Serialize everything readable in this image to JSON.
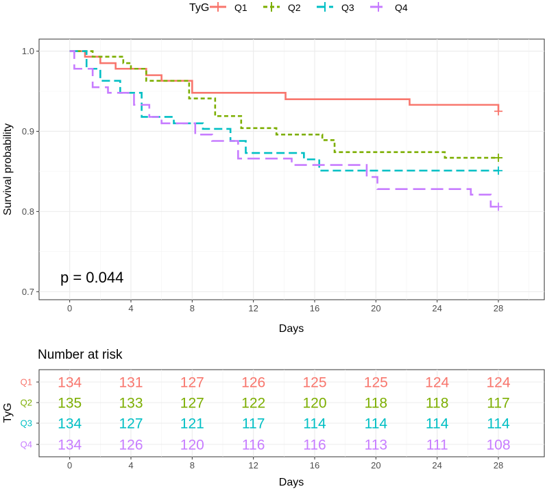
{
  "legend": {
    "title": "TyG",
    "items": [
      {
        "label": "Q1",
        "color": "#F8766D",
        "dash": "solid"
      },
      {
        "label": "Q2",
        "color": "#7CAE00",
        "dash": "dotted"
      },
      {
        "label": "Q3",
        "color": "#00BFC4",
        "dash": "dashed"
      },
      {
        "label": "Q4",
        "color": "#C77CFF",
        "dash": "longdash"
      }
    ]
  },
  "chart_data": [
    {
      "type": "line",
      "subtype": "kaplan-meier step",
      "xlabel": "Days",
      "ylabel": "Survival probability",
      "xlim": [
        -2,
        31
      ],
      "ylim": [
        0.69,
        1.015
      ],
      "xticks": [
        0,
        4,
        8,
        12,
        16,
        20,
        24,
        28
      ],
      "yticks": [
        0.7,
        0.8,
        0.9,
        1.0
      ],
      "ytick_labels": [
        "0.7",
        "0.8",
        "0.9",
        "1.0"
      ],
      "grid": true,
      "legend_position": "top",
      "annotation": "p = 0.044",
      "series": [
        {
          "name": "Q1",
          "x": [
            0,
            1,
            2,
            3,
            5,
            6,
            8,
            14.1,
            22.2,
            28
          ],
          "y": [
            1.0,
            0.993,
            0.985,
            0.978,
            0.97,
            0.963,
            0.948,
            0.94,
            0.933,
            0.925
          ]
        },
        {
          "name": "Q2",
          "x": [
            0,
            1.5,
            3.5,
            4,
            5,
            7.8,
            9.5,
            11.2,
            13.5,
            16.5,
            17.3,
            24.5,
            28
          ],
          "y": [
            1.0,
            0.993,
            0.985,
            0.978,
            0.963,
            0.941,
            0.919,
            0.904,
            0.896,
            0.889,
            0.874,
            0.867,
            0.867
          ]
        },
        {
          "name": "Q3",
          "x": [
            0,
            1.1,
            2,
            3.3,
            4.7,
            6.8,
            8.7,
            10.5,
            11.5,
            15.3,
            16.3,
            28
          ],
          "y": [
            1.0,
            0.978,
            0.963,
            0.948,
            0.918,
            0.91,
            0.903,
            0.888,
            0.873,
            0.865,
            0.851,
            0.851
          ]
        },
        {
          "name": "Q4",
          "x": [
            0,
            0.3,
            1.5,
            2.5,
            4.2,
            5.2,
            6,
            8.2,
            9.3,
            11,
            14.5,
            19.4,
            20.1,
            23.7,
            26.2,
            27.5,
            28
          ],
          "y": [
            1.0,
            0.978,
            0.955,
            0.948,
            0.933,
            0.918,
            0.91,
            0.896,
            0.888,
            0.866,
            0.858,
            0.843,
            0.828,
            0.828,
            0.821,
            0.806,
            0.806
          ]
        }
      ]
    },
    {
      "type": "table",
      "title": "Number at risk",
      "ylabel": "TyG",
      "xlabel": "Days",
      "xticks": [
        0,
        4,
        8,
        12,
        16,
        20,
        24,
        28
      ],
      "rows": [
        {
          "name": "Q1",
          "values": [
            134,
            131,
            127,
            126,
            125,
            125,
            124,
            124
          ]
        },
        {
          "name": "Q2",
          "values": [
            135,
            133,
            127,
            122,
            120,
            118,
            118,
            117
          ]
        },
        {
          "name": "Q3",
          "values": [
            134,
            127,
            121,
            117,
            114,
            114,
            114,
            114
          ]
        },
        {
          "name": "Q4",
          "values": [
            134,
            126,
            120,
            116,
            116,
            113,
            111,
            108
          ]
        }
      ]
    }
  ]
}
